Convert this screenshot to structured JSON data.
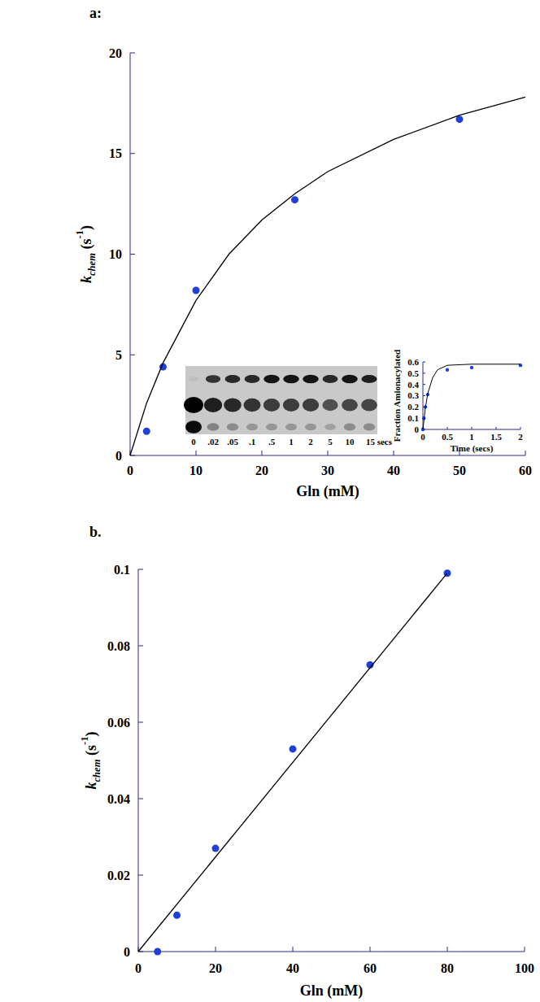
{
  "chart_data": [
    {
      "type": "scatter",
      "panel_label": "a:",
      "x_label": "Gln (mM)",
      "y_label": [
        {
          "text": "k",
          "style": "italic"
        },
        {
          "text": "chem",
          "style": "sub"
        },
        {
          "text": " (s",
          "style": "normal"
        },
        {
          "text": "-1",
          "style": "sup"
        },
        {
          "text": ")",
          "style": "normal"
        }
      ],
      "xlim": [
        0,
        60
      ],
      "ylim": [
        0,
        20
      ],
      "xticks": [
        0,
        10,
        20,
        30,
        40,
        50,
        60
      ],
      "yticks": [
        0,
        5,
        10,
        15,
        20
      ],
      "grid": false,
      "series": [
        {
          "type": "scatter",
          "marker": "circle",
          "color": "#1f3fd8",
          "x": [
            2.5,
            5,
            10,
            25,
            50
          ],
          "values": [
            1.2,
            4.4,
            8.2,
            12.7,
            16.7
          ]
        },
        {
          "type": "line",
          "line_style": "solid",
          "color": "#000000",
          "x": [
            0,
            2.5,
            5,
            10,
            15,
            20,
            25,
            30,
            40,
            50,
            60
          ],
          "values": [
            0,
            2.6,
            4.6,
            7.7,
            10.0,
            11.7,
            13.0,
            14.1,
            15.7,
            16.9,
            17.8
          ]
        }
      ]
    },
    {
      "type": "scatter",
      "x_label": "Time (secs)",
      "y_label": [
        {
          "text": "Fraction Amionacylated",
          "style": "normal"
        }
      ],
      "xlim": [
        0,
        2
      ],
      "ylim": [
        0,
        0.6
      ],
      "xticks": [
        0,
        0.5,
        1,
        1.5,
        2
      ],
      "yticks": [
        0,
        0.1,
        0.2,
        0.3,
        0.4,
        0.5,
        0.6
      ],
      "grid": false,
      "series": [
        {
          "type": "scatter",
          "marker": "circle",
          "color": "#1f3fd8",
          "x": [
            0,
            0.02,
            0.05,
            0.1,
            0.5,
            1,
            2
          ],
          "values": [
            0,
            0.1,
            0.2,
            0.31,
            0.53,
            0.55,
            0.57
          ]
        },
        {
          "type": "line",
          "line_style": "solid",
          "color": "#000000",
          "x": [
            0,
            0.05,
            0.1,
            0.2,
            0.3,
            0.5,
            1,
            2
          ],
          "values": [
            0,
            0.19,
            0.32,
            0.46,
            0.53,
            0.57,
            0.58,
            0.58
          ]
        }
      ]
    },
    {
      "type": "scatter",
      "panel_label": "b.",
      "x_label": "Gln (mM)",
      "y_label": [
        {
          "text": "k",
          "style": "italic"
        },
        {
          "text": "chem",
          "style": "sub"
        },
        {
          "text": " (s",
          "style": "normal"
        },
        {
          "text": "-1",
          "style": "sup"
        },
        {
          "text": ")",
          "style": "normal"
        }
      ],
      "xlim": [
        0,
        100
      ],
      "ylim": [
        0,
        0.1
      ],
      "xticks": [
        0,
        20,
        40,
        60,
        80,
        100
      ],
      "yticks": [
        0,
        0.02,
        0.04,
        0.06,
        0.08,
        0.1
      ],
      "grid": false,
      "series": [
        {
          "type": "scatter",
          "marker": "circle",
          "color": "#1f3fd8",
          "x": [
            5,
            10,
            20,
            40,
            60,
            80
          ],
          "values": [
            0,
            0.0095,
            0.027,
            0.053,
            0.075,
            0.099
          ]
        },
        {
          "type": "line",
          "line_style": "solid",
          "color": "#000000",
          "x": [
            0,
            80
          ],
          "values": [
            0,
            0.099
          ]
        }
      ]
    }
  ],
  "gel": {
    "lanes": [
      {
        "label": "0",
        "bands": [
          0.05,
          1.0,
          0.95
        ]
      },
      {
        "label": ".02",
        "bands": [
          0.75,
          0.85,
          0.35
        ]
      },
      {
        "label": ".05",
        "bands": [
          0.8,
          0.8,
          0.3
        ]
      },
      {
        "label": ".1",
        "bands": [
          0.8,
          0.75,
          0.25
        ]
      },
      {
        "label": ".5",
        "bands": [
          0.9,
          0.7,
          0.25
        ]
      },
      {
        "label": "1",
        "bands": [
          0.9,
          0.7,
          0.25
        ]
      },
      {
        "label": "2",
        "bands": [
          0.9,
          0.7,
          0.25
        ]
      },
      {
        "label": "5",
        "bands": [
          0.8,
          0.6,
          0.2
        ]
      },
      {
        "label": "10",
        "bands": [
          0.9,
          0.65,
          0.3
        ]
      },
      {
        "label": "15 secs",
        "bands": [
          0.85,
          0.65,
          0.3
        ]
      }
    ]
  }
}
